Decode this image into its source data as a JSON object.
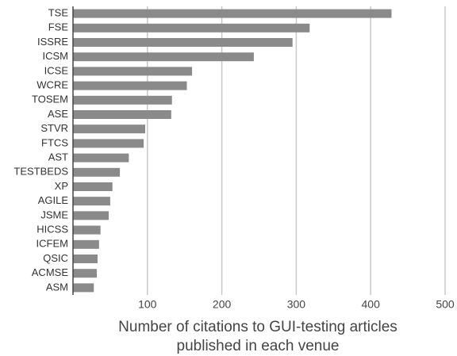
{
  "chart_data": {
    "type": "bar",
    "orientation": "horizontal",
    "categories": [
      "TSE",
      "FSE",
      "ISSRE",
      "ICSM",
      "ICSE",
      "WCRE",
      "TOSEM",
      "ASE",
      "STVR",
      "FTCS",
      "AST",
      "TESTBEDS",
      "XP",
      "AGILE",
      "JSME",
      "HICSS",
      "ICFEM",
      "QSIC",
      "ACMSE",
      "ASM"
    ],
    "values": [
      428,
      318,
      295,
      243,
      160,
      153,
      133,
      132,
      97,
      95,
      75,
      63,
      53,
      50,
      48,
      37,
      35,
      33,
      32,
      28
    ],
    "color": "#8a8a8a",
    "xlim": [
      0,
      500
    ],
    "xticks": [
      100,
      200,
      300,
      400,
      500
    ],
    "grid": true,
    "xlabel": [
      "Number of citations to GUI-testing articles",
      "published in each venue"
    ]
  }
}
